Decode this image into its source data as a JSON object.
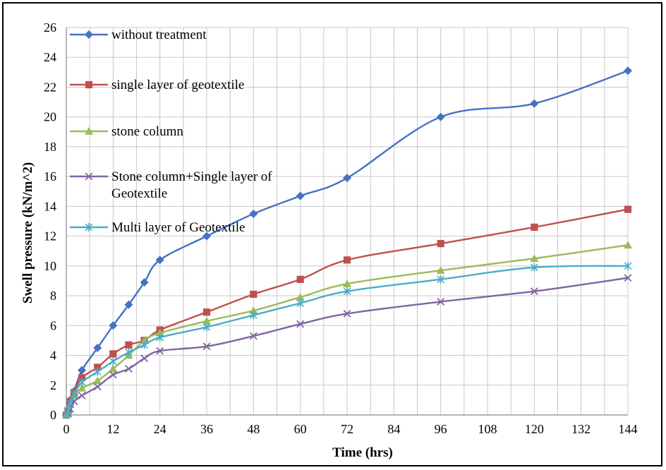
{
  "chart_data": {
    "type": "line",
    "xlabel": "Time (hrs)",
    "ylabel": "Swell pressure (kN/m^2)",
    "xlim": [
      0,
      144
    ],
    "ylim": [
      0,
      26
    ],
    "x_ticks": [
      0,
      12,
      24,
      36,
      48,
      60,
      72,
      84,
      96,
      108,
      120,
      132,
      144
    ],
    "x_minor_step": 6,
    "y_ticks": [
      0,
      2,
      4,
      6,
      8,
      10,
      12,
      14,
      16,
      18,
      20,
      22,
      24,
      26
    ],
    "grid": true,
    "legend_position": "top-left",
    "series": [
      {
        "name": "without treatment",
        "color": "#4472C4",
        "marker": "diamond",
        "points": [
          [
            0,
            0
          ],
          [
            0.5,
            0.4
          ],
          [
            1,
            1
          ],
          [
            2,
            1.6
          ],
          [
            4,
            3
          ],
          [
            8,
            4.5
          ],
          [
            12,
            6
          ],
          [
            16,
            7.4
          ],
          [
            20,
            8.9
          ],
          [
            24,
            10.4
          ],
          [
            36,
            12
          ],
          [
            48,
            13.5
          ],
          [
            60,
            14.7
          ],
          [
            72,
            15.9
          ],
          [
            96,
            20
          ],
          [
            120,
            20.9
          ],
          [
            144,
            23.1
          ]
        ]
      },
      {
        "name": "single layer of geotextile",
        "color": "#C0504D",
        "marker": "square",
        "points": [
          [
            0,
            0
          ],
          [
            0.5,
            0.3
          ],
          [
            1,
            0.9
          ],
          [
            2,
            1.5
          ],
          [
            4,
            2.5
          ],
          [
            8,
            3.2
          ],
          [
            12,
            4.1
          ],
          [
            16,
            4.7
          ],
          [
            20,
            5
          ],
          [
            24,
            5.7
          ],
          [
            36,
            6.9
          ],
          [
            48,
            8.1
          ],
          [
            60,
            9.1
          ],
          [
            72,
            10.4
          ],
          [
            96,
            11.5
          ],
          [
            120,
            12.6
          ],
          [
            144,
            13.8
          ]
        ]
      },
      {
        "name": "stone column",
        "color": "#9BBB59",
        "marker": "triangle",
        "points": [
          [
            0,
            0
          ],
          [
            0.5,
            0.2
          ],
          [
            1,
            0.7
          ],
          [
            2,
            1.3
          ],
          [
            4,
            1.8
          ],
          [
            8,
            2.3
          ],
          [
            12,
            3.1
          ],
          [
            16,
            4
          ],
          [
            20,
            5
          ],
          [
            24,
            5.5
          ],
          [
            36,
            6.3
          ],
          [
            48,
            7
          ],
          [
            60,
            7.9
          ],
          [
            72,
            8.8
          ],
          [
            96,
            9.7
          ],
          [
            120,
            10.5
          ],
          [
            144,
            11.4
          ]
        ]
      },
      {
        "name": "Stone column+Single layer of Geotextile",
        "color": "#8064A2",
        "marker": "x",
        "points": [
          [
            0,
            0
          ],
          [
            0.5,
            0.1
          ],
          [
            1,
            0.4
          ],
          [
            2,
            0.9
          ],
          [
            4,
            1.3
          ],
          [
            8,
            1.9
          ],
          [
            12,
            2.7
          ],
          [
            16,
            3.1
          ],
          [
            20,
            3.8
          ],
          [
            24,
            4.3
          ],
          [
            36,
            4.6
          ],
          [
            48,
            5.3
          ],
          [
            60,
            6.1
          ],
          [
            72,
            6.8
          ],
          [
            96,
            7.6
          ],
          [
            120,
            8.3
          ],
          [
            144,
            9.2
          ]
        ]
      },
      {
        "name": "Multi layer of Geotextile",
        "color": "#4BACC6",
        "marker": "star",
        "points": [
          [
            0,
            0
          ],
          [
            0.5,
            0.3
          ],
          [
            1,
            0.8
          ],
          [
            2,
            1.4
          ],
          [
            4,
            2.2
          ],
          [
            8,
            2.9
          ],
          [
            12,
            3.6
          ],
          [
            16,
            4.2
          ],
          [
            20,
            4.7
          ],
          [
            24,
            5.2
          ],
          [
            36,
            5.9
          ],
          [
            48,
            6.7
          ],
          [
            60,
            7.5
          ],
          [
            72,
            8.3
          ],
          [
            96,
            9.1
          ],
          [
            120,
            9.9
          ],
          [
            144,
            10
          ]
        ]
      }
    ]
  }
}
